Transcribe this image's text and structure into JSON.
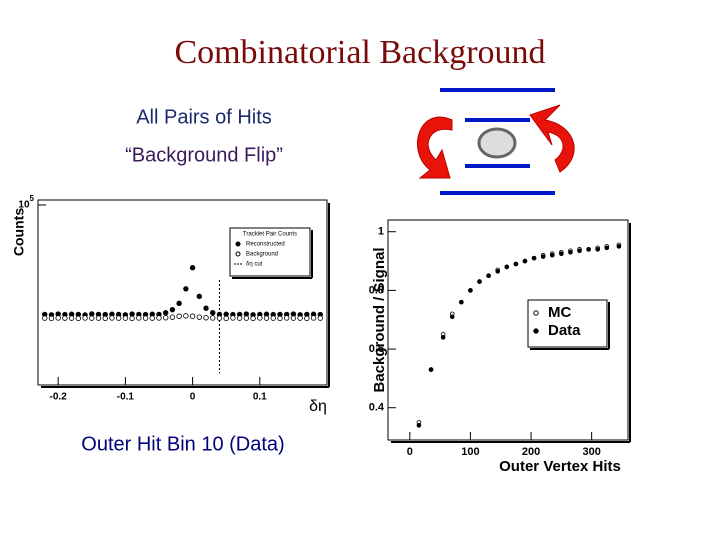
{
  "slide": {
    "title": "Combinatorial Background",
    "subtitle_1": "All Pairs of Hits",
    "subtitle_2": "“Background Flip”",
    "caption": "Outer Hit Bin 10 (Data)"
  },
  "chart_data": [
    {
      "type": "scatter",
      "y_label": "Counts",
      "x_label": "δη",
      "log_y": true,
      "legend_title": "Tracklet Pair Counts",
      "cut_label": "δη cut",
      "cut": 0.04,
      "xlim": [
        -0.23,
        0.2
      ],
      "ylim": [
        100,
        121000
      ],
      "xticks": [
        -0.2,
        -0.1,
        0,
        0.1
      ],
      "yticks": [
        {
          "value": 100000,
          "label": "10^5"
        }
      ],
      "x": [
        -0.22,
        -0.21,
        -0.2,
        -0.19,
        -0.18,
        -0.17,
        -0.16,
        -0.15,
        -0.14,
        -0.13,
        -0.12,
        -0.11,
        -0.1,
        -0.09,
        -0.08,
        -0.07,
        -0.06,
        -0.05,
        -0.04,
        -0.03,
        -0.02,
        -0.01,
        0,
        0.01,
        0.02,
        0.03,
        0.04,
        0.05,
        0.06,
        0.07,
        0.08,
        0.09,
        0.1,
        0.11,
        0.12,
        0.13,
        0.14,
        0.15,
        0.16,
        0.17,
        0.18,
        0.19
      ],
      "series": [
        {
          "name": "Reconstructed",
          "color": "#000000",
          "filled": true,
          "values": [
            1500,
            1480,
            1520,
            1490,
            1510,
            1500,
            1470,
            1530,
            1500,
            1490,
            1510,
            1500,
            1480,
            1520,
            1500,
            1490,
            1510,
            1500,
            1600,
            1800,
            2300,
            4000,
            9000,
            3000,
            1900,
            1600,
            1500,
            1510,
            1490,
            1500,
            1520,
            1480,
            1500,
            1510,
            1490,
            1500,
            1500,
            1520,
            1480,
            1500,
            1510,
            1490
          ]
        },
        {
          "name": "Background",
          "color": "#000000",
          "filled": false,
          "values": [
            1300,
            1290,
            1310,
            1300,
            1300,
            1290,
            1310,
            1300,
            1300,
            1290,
            1310,
            1300,
            1300,
            1290,
            1310,
            1300,
            1300,
            1310,
            1320,
            1350,
            1400,
            1420,
            1400,
            1350,
            1320,
            1310,
            1300,
            1290,
            1310,
            1300,
            1300,
            1290,
            1310,
            1300,
            1300,
            1290,
            1310,
            1300,
            1300,
            1290,
            1310,
            1300
          ]
        }
      ]
    },
    {
      "type": "scatter",
      "y_label": "Background / Signal",
      "x_label": "Outer Vertex Hits",
      "xlim": [
        -36,
        360
      ],
      "ylim": [
        0.29,
        1.04
      ],
      "xticks": [
        0,
        100,
        200,
        300
      ],
      "yticks": [
        1,
        0.8,
        0.6,
        0.4
      ],
      "x": [
        15,
        35,
        55,
        70,
        85,
        100,
        115,
        130,
        145,
        160,
        175,
        190,
        205,
        220,
        235,
        250,
        265,
        280,
        295,
        310,
        325,
        345
      ],
      "series": [
        {
          "name": "MC",
          "color": "#000000",
          "filled": false,
          "values": [
            0.35,
            0.53,
            0.65,
            0.72,
            0.76,
            0.8,
            0.83,
            0.85,
            0.87,
            0.88,
            0.89,
            0.9,
            0.91,
            0.92,
            0.925,
            0.93,
            0.935,
            0.94,
            0.94,
            0.945,
            0.95,
            0.955
          ]
        },
        {
          "name": "Data",
          "color": "#000000",
          "filled": true,
          "values": [
            0.34,
            0.53,
            0.64,
            0.71,
            0.76,
            0.8,
            0.83,
            0.85,
            0.865,
            0.88,
            0.89,
            0.9,
            0.91,
            0.915,
            0.92,
            0.925,
            0.93,
            0.935,
            0.94,
            0.94,
            0.945,
            0.95
          ]
        }
      ]
    }
  ]
}
